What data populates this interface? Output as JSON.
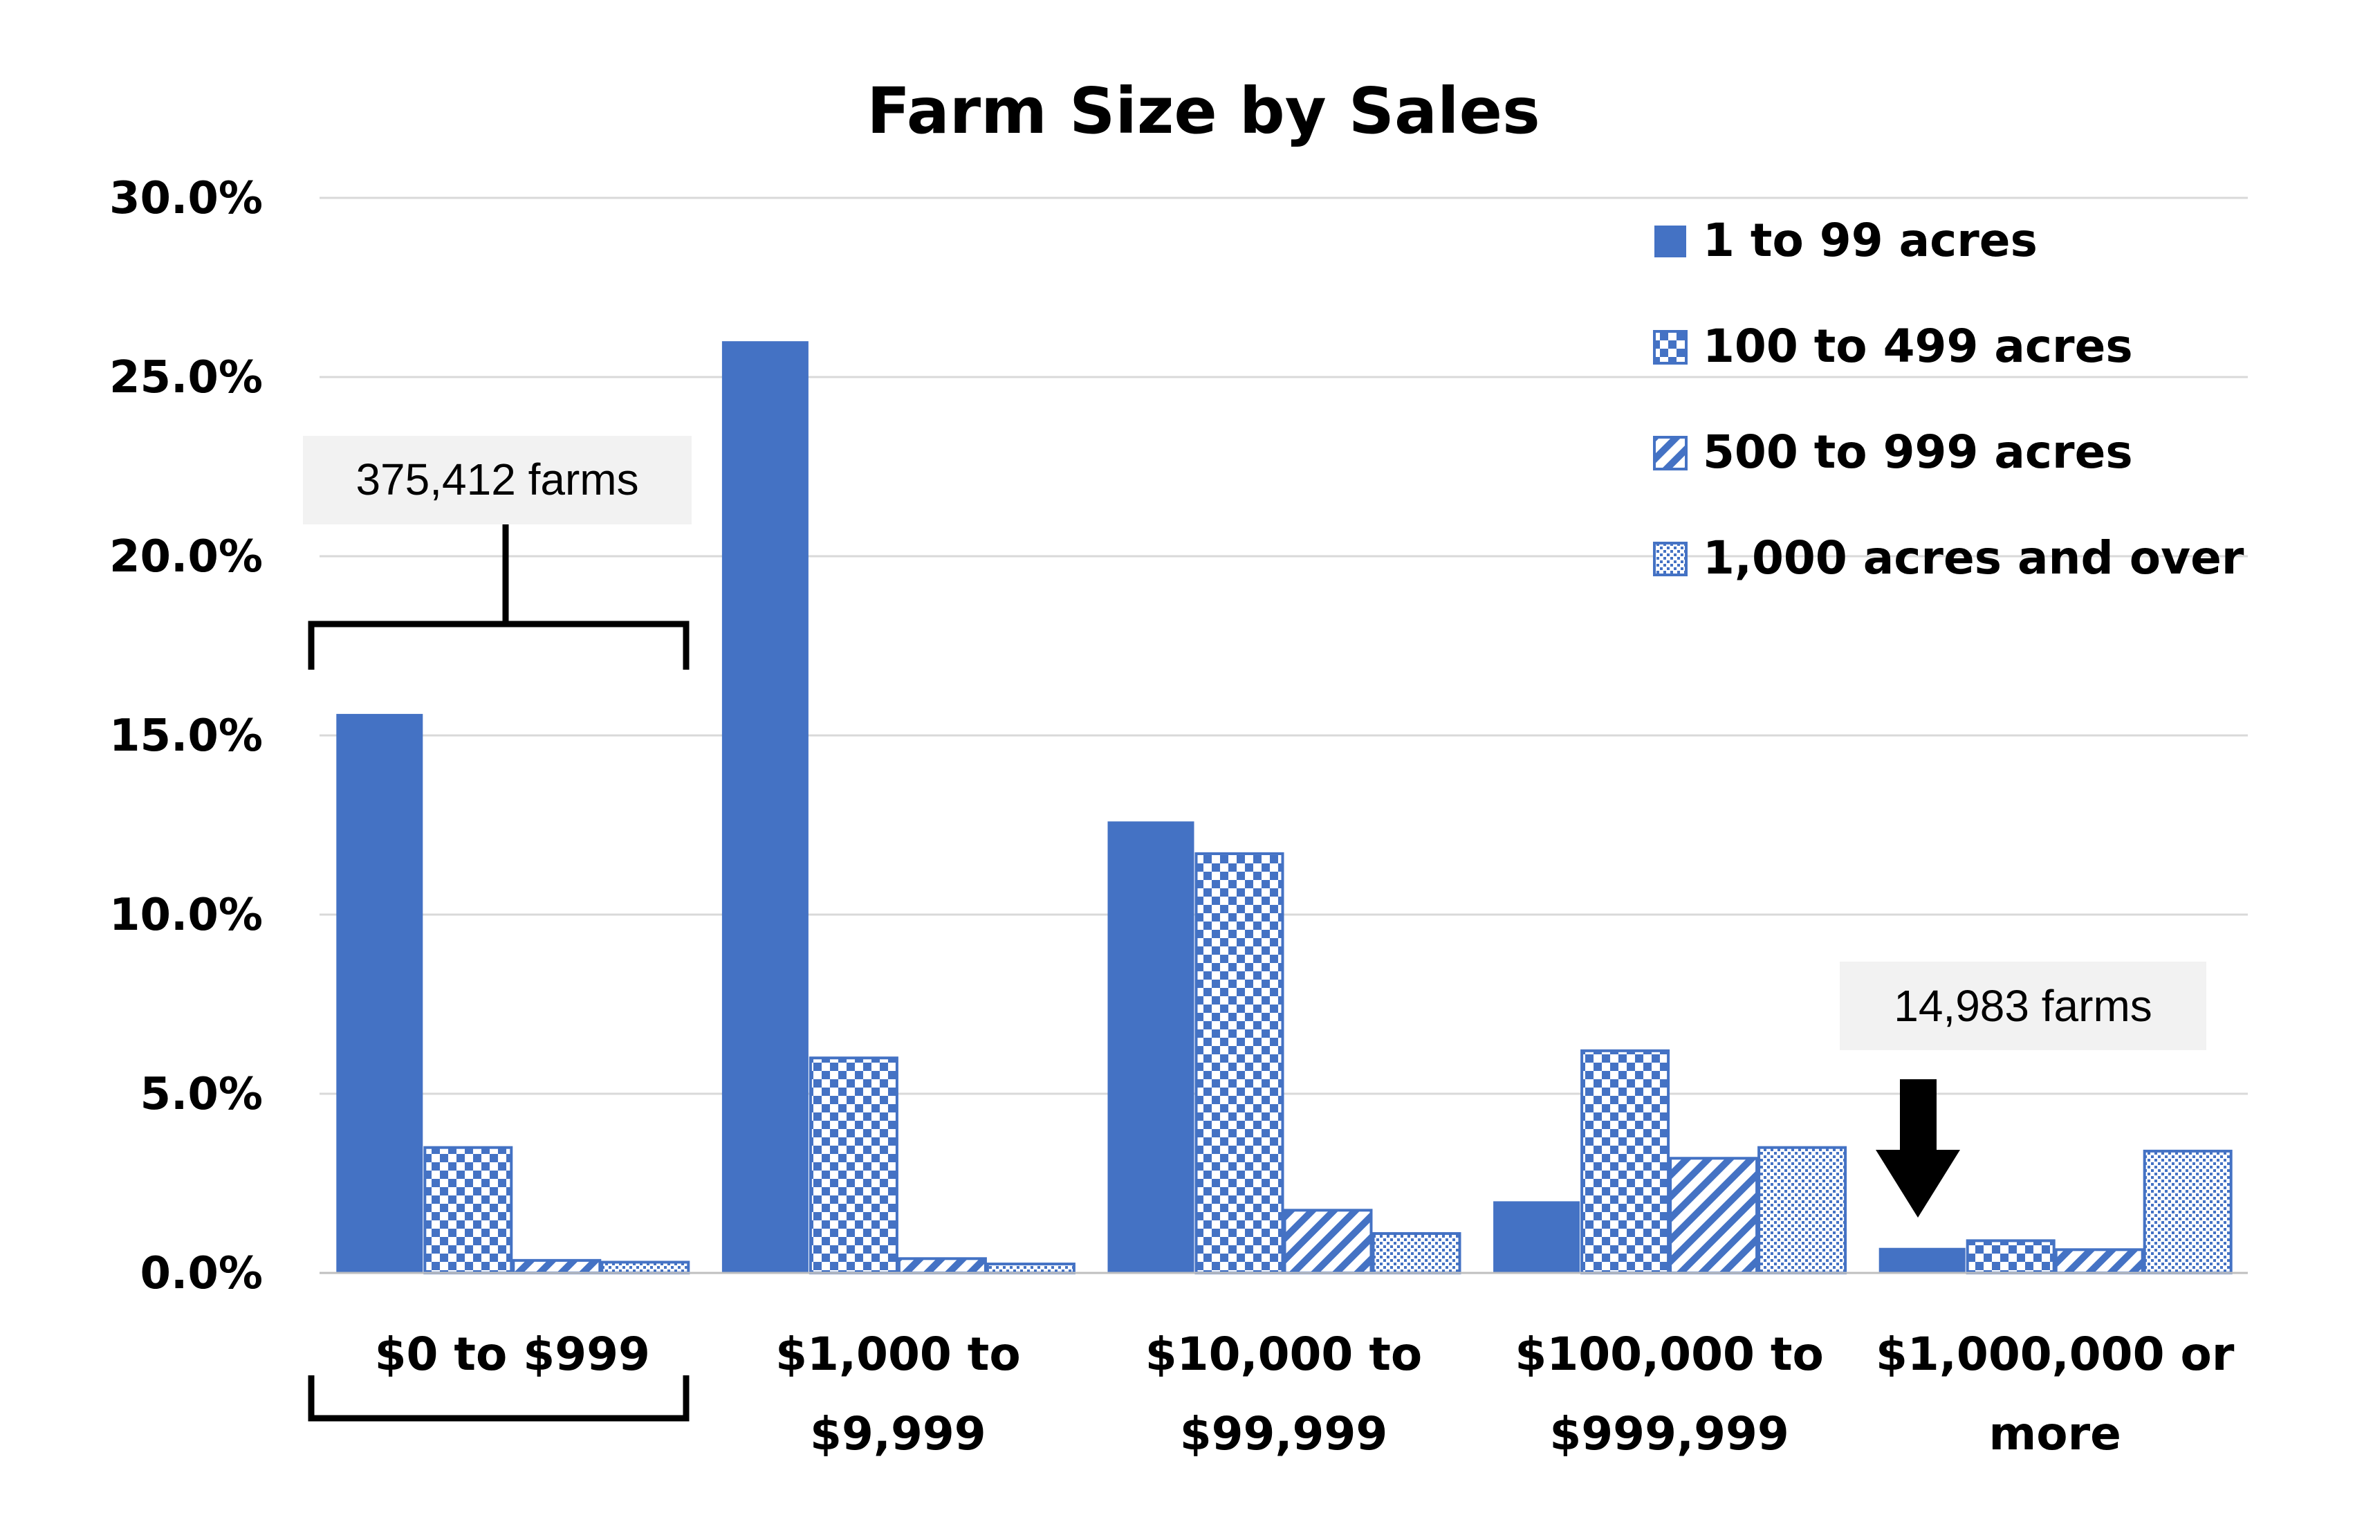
{
  "chart_data": {
    "type": "bar",
    "title": "Farm Size by Sales",
    "xlabel": "",
    "ylabel": "",
    "ylim": [
      0,
      30
    ],
    "y_ticks": [
      "0.0%",
      "5.0%",
      "10.0%",
      "15.0%",
      "20.0%",
      "25.0%",
      "30.0%"
    ],
    "grid": true,
    "legend_position": "top-right",
    "categories": [
      [
        "$0 to  $999"
      ],
      [
        "$1,000 to",
        "$9,999"
      ],
      [
        "$10,000 to",
        "$99,999"
      ],
      [
        "$100,000 to",
        "$999,999"
      ],
      [
        "$1,000,000 or",
        "more"
      ]
    ],
    "series": [
      {
        "name": "1 to 99 acres",
        "pattern": "solid",
        "values": [
          15.6,
          26.0,
          12.6,
          2.0,
          0.7
        ]
      },
      {
        "name": "100 to 499 acres",
        "pattern": "checker",
        "values": [
          3.5,
          6.0,
          11.7,
          6.2,
          0.9
        ]
      },
      {
        "name": "500 to 999 acres",
        "pattern": "diagonal",
        "values": [
          0.35,
          0.4,
          1.75,
          3.2,
          0.65
        ]
      },
      {
        "name": "1,000 acres and over",
        "pattern": "dots",
        "values": [
          0.3,
          0.25,
          1.1,
          3.5,
          3.4
        ]
      }
    ],
    "annotations": [
      {
        "text": "375,412 farms",
        "category_index": 0,
        "marker": "bracket"
      },
      {
        "text": "14,983 farms",
        "category_index": 4,
        "marker": "arrow"
      }
    ],
    "colors": {
      "bar": "#4472C4",
      "grid": "#D9D9D9",
      "annotation_box": "#F2F2F2"
    }
  }
}
